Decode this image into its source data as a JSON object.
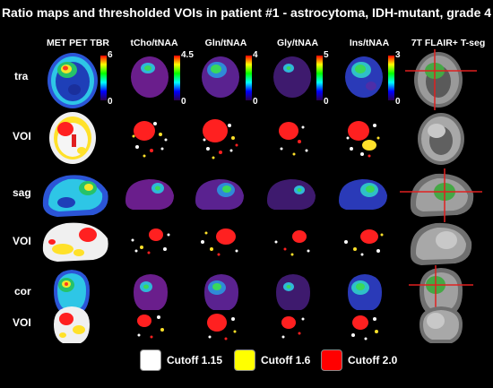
{
  "title": "Ratio maps and thresholded VOIs in patient #1 - astrocytoma, IDH-mutant, grade 4",
  "columns": [
    {
      "label": "MET PET TBR",
      "max": "6",
      "min": "0"
    },
    {
      "label": "tCho/tNAA",
      "max": "4.5",
      "min": "0"
    },
    {
      "label": "Gln/tNAA",
      "max": "4",
      "min": "0"
    },
    {
      "label": "Gly/tNAA",
      "max": "5",
      "min": "0"
    },
    {
      "label": "Ins/tNAA",
      "max": "3",
      "min": "0"
    },
    {
      "label": "7T FLAIR+ T-seg",
      "max": "",
      "min": ""
    }
  ],
  "rows": [
    "tra",
    "VOI",
    "sag",
    "VOI",
    "cor",
    "VOI"
  ],
  "legend": [
    {
      "label": "Cutoff 1.15",
      "color": "#ffffff"
    },
    {
      "label": "Cutoff 1.6",
      "color": "#ffff00"
    },
    {
      "label": "Cutoff 2.0",
      "color": "#ff0000"
    }
  ]
}
